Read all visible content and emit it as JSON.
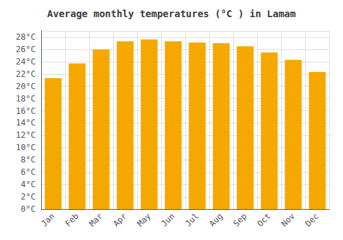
{
  "chart_data": {
    "type": "bar",
    "title": "Average monthly temperatures (°C ) in Lamam",
    "categories": [
      "Jan",
      "Feb",
      "Mar",
      "Apr",
      "May",
      "Jun",
      "Jul",
      "Aug",
      "Sep",
      "Oct",
      "Nov",
      "Dec"
    ],
    "values": [
      21.3,
      23.7,
      26.0,
      27.3,
      27.6,
      27.3,
      27.1,
      27.0,
      26.5,
      25.5,
      24.3,
      22.3
    ],
    "color": "#F5A800",
    "ylim": [
      0,
      29
    ],
    "yticks": [
      {
        "value": 0,
        "label": "0°C"
      },
      {
        "value": 2,
        "label": "2°C"
      },
      {
        "value": 4,
        "label": "4°C"
      },
      {
        "value": 6,
        "label": "6°C"
      },
      {
        "value": 8,
        "label": "8°C"
      },
      {
        "value": 10,
        "label": "10°C"
      },
      {
        "value": 12,
        "label": "12°C"
      },
      {
        "value": 14,
        "label": "14°C"
      },
      {
        "value": 16,
        "label": "16°C"
      },
      {
        "value": 18,
        "label": "18°C"
      },
      {
        "value": 20,
        "label": "20°C"
      },
      {
        "value": 22,
        "label": "22°C"
      },
      {
        "value": 24,
        "label": "24°C"
      },
      {
        "value": 26,
        "label": "26°C"
      },
      {
        "value": 28,
        "label": "28°C"
      }
    ],
    "grid": true
  }
}
